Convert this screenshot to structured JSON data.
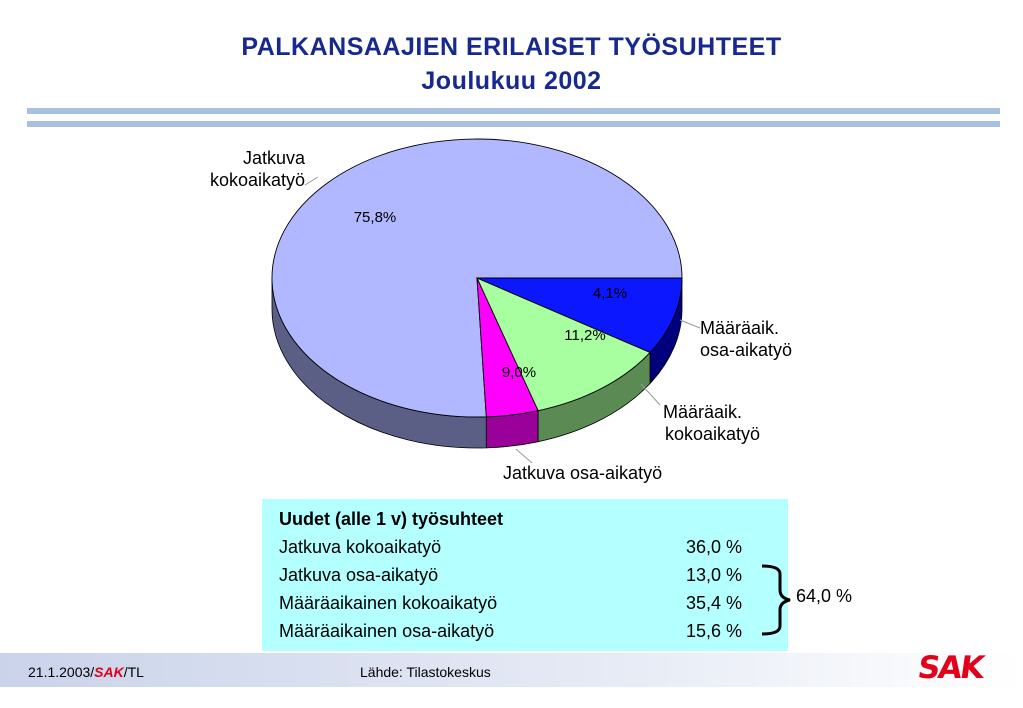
{
  "title": {
    "line1": "PALKANSAAJIEN ERILAISET TYÖSUHTEET",
    "line2": "Joulukuu 2002"
  },
  "chart_data": {
    "type": "pie",
    "categories": [
      "Jatkuva kokoaikatyö",
      "Määräaik. osa-aikatyö",
      "Määräaik. kokoaikatyö",
      "Jatkuva osa-aikatyö"
    ],
    "label_lines": [
      [
        "Jatkuva",
        "kokoaikatyö"
      ],
      [
        "Määräaik.",
        "osa-aikatyö"
      ],
      [
        "Määräaik.",
        "kokoaikatyö"
      ],
      [
        "Jatkuva",
        "osa-aikatyö"
      ]
    ],
    "values": [
      75.8,
      4.1,
      11.2,
      9.0
    ],
    "value_labels": [
      "75,8%",
      "4,1%",
      "11,2%",
      "9,0%"
    ],
    "colors": [
      "#b1b8ff",
      "#ff00ff",
      "#a8ffa0",
      "#0b17ff"
    ],
    "side_colors": [
      "#5b5f86",
      "#9a009a",
      "#5c8a55",
      "#00007d"
    ]
  },
  "table": {
    "header": "Uudet (alle 1 v) työsuhteet",
    "rows": [
      {
        "label": "Jatkuva kokoaikatyö",
        "value": "36,0 %"
      },
      {
        "label": "Jatkuva osa-aikatyö",
        "value": "13,0 %"
      },
      {
        "label": "Määräaikainen kokoaikatyö",
        "value": "35,4 %"
      },
      {
        "label": "Määräaikainen osa-aikatyö",
        "value": "15,6 %"
      }
    ],
    "bracket_total": "64,0 %"
  },
  "footer": {
    "date": "21.1.2003/",
    "org": "SAK",
    "suffix": "/TL",
    "source": "Lähde: Tilastokeskus"
  },
  "logo": {
    "text": "SAK"
  }
}
